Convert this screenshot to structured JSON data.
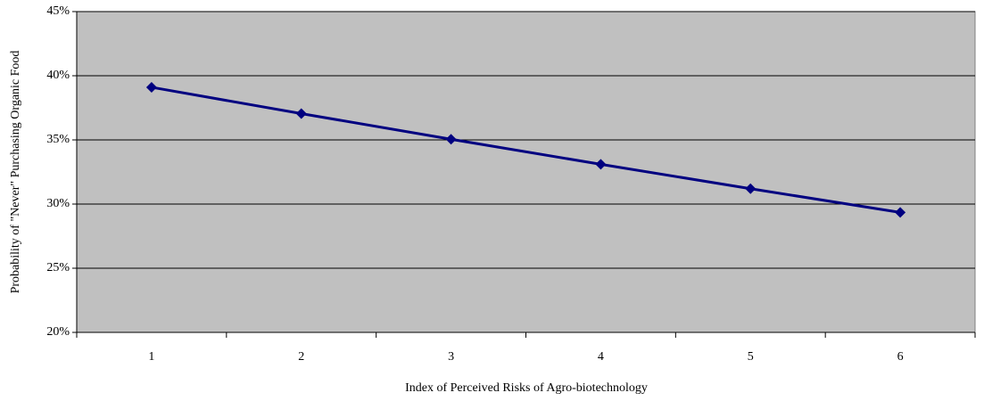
{
  "chart_data": {
    "type": "line",
    "x_label": "Index of Perceived Risks of Agro-biotechnology",
    "y_label": "Probability of \"Never\" Purchasing Organic Food",
    "categories": [
      "1",
      "2",
      "3",
      "4",
      "5",
      "6"
    ],
    "series": [
      {
        "name": "Probability",
        "color": "#000080",
        "values": [
          39.1,
          37.05,
          35.05,
          33.1,
          31.2,
          29.35
        ]
      }
    ],
    "ylim": [
      20,
      45
    ],
    "yticks": [
      {
        "value": 20,
        "label": "20%"
      },
      {
        "value": 25,
        "label": "25%"
      },
      {
        "value": 30,
        "label": "30%"
      },
      {
        "value": 35,
        "label": "35%"
      },
      {
        "value": 40,
        "label": "40%"
      },
      {
        "value": 45,
        "label": "45%"
      }
    ],
    "grid": true,
    "plot_background": "#c0c0c0"
  }
}
